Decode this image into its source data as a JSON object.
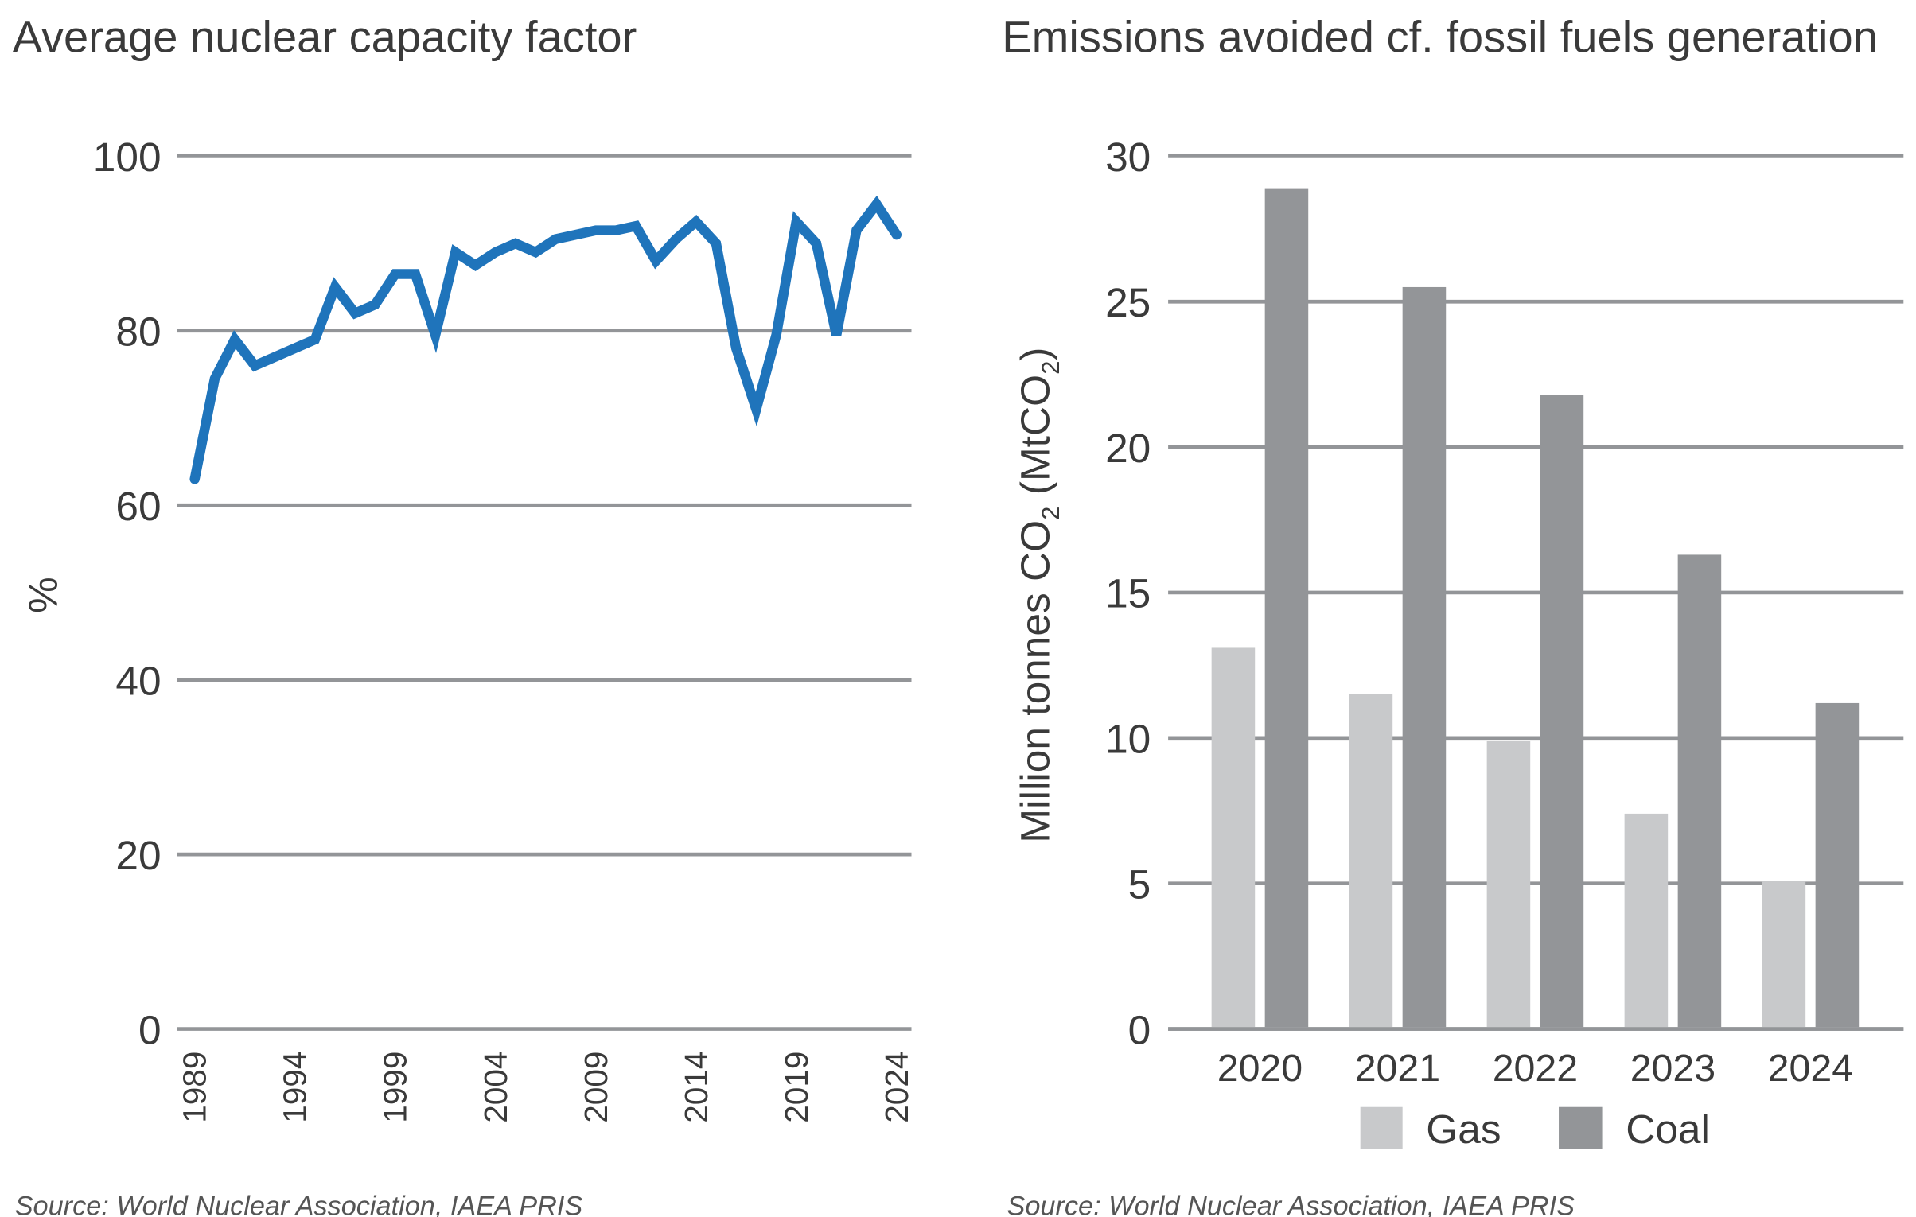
{
  "chart_data": [
    {
      "type": "line",
      "title": "Average nuclear capacity factor",
      "ylabel": "%",
      "xlabel": "",
      "ylim": [
        0,
        100
      ],
      "yticks": [
        0,
        20,
        40,
        60,
        80,
        100
      ],
      "xticks": [
        1989,
        1994,
        1999,
        2004,
        2009,
        2014,
        2019,
        2024
      ],
      "grid": true,
      "color": "#1f74bb",
      "x": [
        1989,
        1990,
        1991,
        1992,
        1993,
        1994,
        1995,
        1996,
        1997,
        1998,
        1999,
        2000,
        2001,
        2002,
        2003,
        2004,
        2005,
        2006,
        2007,
        2008,
        2009,
        2010,
        2011,
        2012,
        2013,
        2014,
        2015,
        2016,
        2017,
        2018,
        2019,
        2020,
        2021,
        2022,
        2023,
        2024
      ],
      "y": [
        63,
        74.5,
        79,
        76,
        77,
        78,
        79,
        85,
        82,
        83,
        86.5,
        86.5,
        79.5,
        89,
        87.5,
        89,
        90,
        89,
        90.5,
        91,
        91.5,
        91.5,
        92,
        88,
        90.5,
        92.5,
        90,
        78,
        71,
        79.5,
        92.5,
        90,
        79.5,
        91.5,
        94.5,
        91
      ],
      "source": "Source: World Nuclear Association, IAEA PRIS"
    },
    {
      "type": "bar",
      "title": "Emissions avoided cf. fossil fuels generation",
      "ylabel_parts": [
        "Million tonnes CO",
        "2",
        " (MtCO",
        "2",
        ")"
      ],
      "ylim": [
        0,
        30
      ],
      "yticks": [
        0,
        5,
        10,
        15,
        20,
        25,
        30
      ],
      "grid": true,
      "categories": [
        "2020",
        "2021",
        "2022",
        "2023",
        "2024"
      ],
      "series": [
        {
          "name": "Gas",
          "color": "#c8c9cb",
          "values": [
            13.1,
            11.5,
            9.9,
            7.4,
            5.1
          ]
        },
        {
          "name": "Coal",
          "color": "#939598",
          "values": [
            28.9,
            25.5,
            21.8,
            16.3,
            11.2
          ]
        }
      ],
      "legend": "bottom",
      "source": "Source: World Nuclear Association, IAEA PRIS"
    }
  ]
}
